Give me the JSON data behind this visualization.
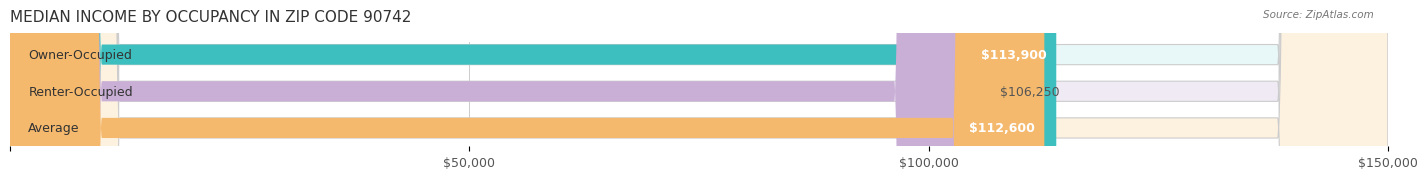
{
  "title": "MEDIAN INCOME BY OCCUPANCY IN ZIP CODE 90742",
  "source": "Source: ZipAtlas.com",
  "categories": [
    "Owner-Occupied",
    "Renter-Occupied",
    "Average"
  ],
  "values": [
    113900,
    106250,
    112600
  ],
  "labels": [
    "$113,900",
    "$106,250",
    "$112,600"
  ],
  "bar_colors": [
    "#3dbfbf",
    "#c9aed6",
    "#f5b96e"
  ],
  "bar_bg_colors": [
    "#e8f8f8",
    "#f0eaf5",
    "#fdf1e0"
  ],
  "xlim": [
    0,
    150000
  ],
  "xticks": [
    0,
    50000,
    100000,
    150000
  ],
  "xticklabels": [
    "",
    "$50,000",
    "$100,000",
    "$150,000"
  ],
  "title_fontsize": 11,
  "label_fontsize": 9,
  "tick_fontsize": 9
}
